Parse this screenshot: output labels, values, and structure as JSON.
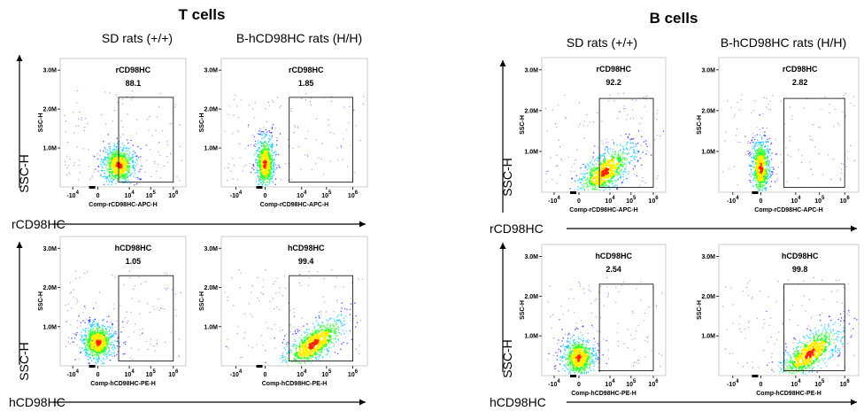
{
  "chart_data": [
    {
      "type": "scatter",
      "panel": "T cells / SD rats (+/+) / rCD98HC",
      "title": "T cells",
      "column_header": "SD rats (+/+)",
      "gate_name": "rCD98HC",
      "gate_value": "88.1",
      "xlabel": "Comp-rCD98HC-APC-H",
      "ylabel": "SSC-H",
      "x_scale": "biexponential",
      "x_ticks": [
        "-10^4",
        "0",
        "10^4",
        "10^5",
        "10^6"
      ],
      "y_ticks": [
        "3.0M",
        "2.0M",
        "1.0M"
      ],
      "ylim": [
        0,
        3300000
      ],
      "population_center": {
        "x": 2000,
        "y": 550000
      },
      "gate": {
        "x": [
          2000,
          1000000
        ],
        "y": [
          0,
          2300000
        ]
      }
    },
    {
      "type": "scatter",
      "panel": "T cells / B-hCD98HC rats (H/H) / rCD98HC",
      "column_header": "B-hCD98HC rats (H/H)",
      "gate_name": "rCD98HC",
      "gate_value": "1.85",
      "xlabel": "Comp-rCD98HC-APC-H",
      "ylabel": "SSC-H",
      "x_ticks": [
        "-10^4",
        "0",
        "10^4",
        "10^5",
        "10^6"
      ],
      "y_ticks": [
        "3.0M",
        "2.0M",
        "1.0M"
      ],
      "ylim": [
        0,
        3300000
      ],
      "population_center": {
        "x": 0,
        "y": 600000
      },
      "gate": {
        "x": [
          2000,
          1000000
        ],
        "y": [
          0,
          2300000
        ]
      }
    },
    {
      "type": "scatter",
      "panel": "T cells / SD rats (+/+) / hCD98HC",
      "gate_name": "hCD98HC",
      "gate_value": "1.05",
      "xlabel": "Comp-hCD98HC-PE-H",
      "ylabel": "SSC-H",
      "x_ticks": [
        "-10^4",
        "0",
        "10^4",
        "10^5",
        "10^6"
      ],
      "y_ticks": [
        "3.0M",
        "2.0M",
        "1.0M"
      ],
      "ylim": [
        0,
        3300000
      ],
      "population_center": {
        "x": 0,
        "y": 600000
      },
      "gate": {
        "x": [
          2000,
          1000000
        ],
        "y": [
          0,
          2300000
        ]
      }
    },
    {
      "type": "scatter",
      "panel": "T cells / B-hCD98HC rats (H/H) / hCD98HC",
      "gate_name": "hCD98HC",
      "gate_value": "99.4",
      "xlabel": "Comp-hCD98HC-PE-H",
      "ylabel": "SSC-H",
      "x_ticks": [
        "-10^4",
        "0",
        "10^4",
        "10^5",
        "10^6"
      ],
      "y_ticks": [
        "3.0M",
        "2.0M",
        "1.0M"
      ],
      "ylim": [
        0,
        3300000
      ],
      "population_center": {
        "x": 30000,
        "y": 550000
      },
      "gate": {
        "x": [
          2000,
          1000000
        ],
        "y": [
          0,
          2300000
        ]
      }
    },
    {
      "type": "scatter",
      "panel": "B cells / SD rats (+/+) / rCD98HC",
      "title": "B cells",
      "column_header": "SD rats (+/+)",
      "gate_name": "rCD98HC",
      "gate_value": "92.2",
      "xlabel": "Comp-rCD98HC-APC-H",
      "ylabel": "SSC-H",
      "x_ticks": [
        "-10^4",
        "0",
        "10^4",
        "10^5",
        "10^6"
      ],
      "y_ticks": [
        "3.0M",
        "2.0M",
        "1.0M"
      ],
      "ylim": [
        0,
        3300000
      ],
      "population_center": {
        "x": 5000,
        "y": 500000
      },
      "gate": {
        "x": [
          2000,
          1000000
        ],
        "y": [
          0,
          2300000
        ]
      }
    },
    {
      "type": "scatter",
      "panel": "B cells / B-hCD98HC rats (H/H) / rCD98HC",
      "column_header": "B-hCD98HC rats (H/H)",
      "gate_name": "rCD98HC",
      "gate_value": "2.82",
      "xlabel": "Comp-rCD98HC-APC-H",
      "ylabel": "SSC-H",
      "x_ticks": [
        "-10^4",
        "0",
        "10^4",
        "10^5",
        "10^6"
      ],
      "y_ticks": [
        "3.0M",
        "2.0M",
        "1.0M"
      ],
      "ylim": [
        0,
        3300000
      ],
      "population_center": {
        "x": 0,
        "y": 600000
      },
      "gate": {
        "x": [
          2000,
          1000000
        ],
        "y": [
          0,
          2300000
        ]
      }
    },
    {
      "type": "scatter",
      "panel": "B cells / SD rats (+/+) / hCD98HC",
      "gate_name": "hCD98HC",
      "gate_value": "2.54",
      "xlabel": "Comp-hCD98HC-PE-H",
      "ylabel": "SSC-H",
      "x_ticks": [
        "-10^4",
        "0",
        "10^4",
        "10^5",
        "10^6"
      ],
      "y_ticks": [
        "3.0M",
        "2.0M",
        "1.0M"
      ],
      "ylim": [
        0,
        3300000
      ],
      "population_center": {
        "x": 0,
        "y": 450000
      },
      "gate": {
        "x": [
          2000,
          1000000
        ],
        "y": [
          0,
          2300000
        ]
      }
    },
    {
      "type": "scatter",
      "panel": "B cells / B-hCD98HC rats (H/H) / hCD98HC",
      "gate_name": "hCD98HC",
      "gate_value": "99.8",
      "xlabel": "Comp-hCD98HC-PE-H",
      "ylabel": "SSC-H",
      "x_ticks": [
        "-10^4",
        "0",
        "10^4",
        "10^5",
        "10^6"
      ],
      "y_ticks": [
        "3.0M",
        "2.0M",
        "1.0M"
      ],
      "ylim": [
        0,
        3300000
      ],
      "population_center": {
        "x": 40000,
        "y": 550000
      },
      "gate": {
        "x": [
          2000,
          1000000
        ],
        "y": [
          0,
          2300000
        ]
      }
    }
  ],
  "sections": [
    {
      "title": "T cells",
      "columns": [
        "SD rats (+/+)",
        "B-hCD98HC rats (H/H)"
      ],
      "row_axis_y": "SSC-H",
      "row_axis_x": [
        "rCD98HC",
        "hCD98HC"
      ]
    },
    {
      "title": "B cells",
      "columns": [
        "SD rats (+/+)",
        "B-hCD98HC rats (H/H)"
      ],
      "row_axis_y": "SSC-H",
      "row_axis_x": [
        "rCD98HC",
        "hCD98HC"
      ]
    }
  ],
  "colors": {
    "density_low": "#1a1aff",
    "density_mid": "#00c8ff",
    "density_mid2": "#33ff33",
    "density_high": "#ffee00",
    "density_peak": "#ff2200",
    "gate_line": "#000000",
    "axis": "#000000"
  }
}
